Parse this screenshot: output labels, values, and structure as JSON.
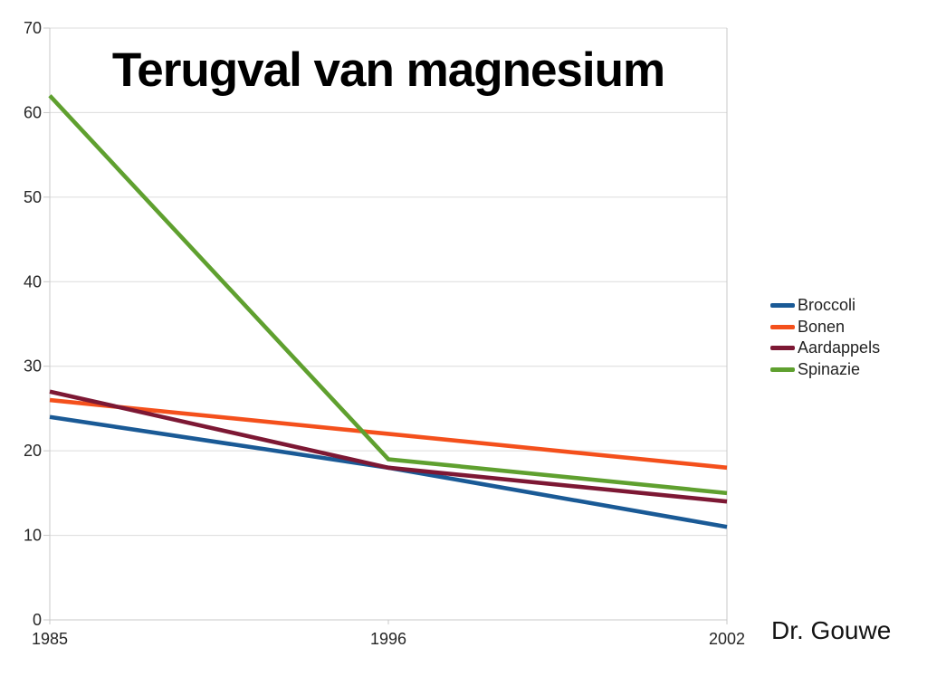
{
  "chart_data": {
    "type": "line",
    "title": "Terugval van magnesium",
    "categories": [
      "1985",
      "1996",
      "2002"
    ],
    "series": [
      {
        "name": "Broccoli",
        "color": "#1a5a96",
        "values": [
          24,
          18,
          11
        ]
      },
      {
        "name": "Bonen",
        "color": "#f4501c",
        "values": [
          26,
          22,
          18
        ]
      },
      {
        "name": "Aardappels",
        "color": "#7d1834",
        "values": [
          27,
          18,
          14
        ]
      },
      {
        "name": "Spinazie",
        "color": "#5fa02f",
        "values": [
          62,
          19,
          15
        ]
      }
    ],
    "ylim": [
      0,
      70
    ],
    "ytick_step": 10,
    "yticks": [
      "0",
      "10",
      "20",
      "30",
      "40",
      "50",
      "60",
      "70"
    ],
    "grid": true,
    "legend_position": "right",
    "gridline_color": "#dcdcdc",
    "axis_color": "#c9c9c9"
  },
  "footer": {
    "credit": "Dr. Gouwe"
  }
}
